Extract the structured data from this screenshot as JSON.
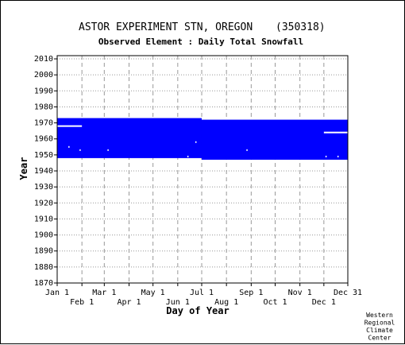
{
  "chart_data": {
    "type": "bar",
    "title": "ASTOR EXPERIMENT STN, OREGON",
    "station_id": "(350318)",
    "subtitle": "Observed Element : Daily Total Snowfall",
    "xlabel": "Day of Year",
    "ylabel": "Year",
    "ylim": [
      1870,
      2012
    ],
    "xlim": [
      1,
      365
    ],
    "grid": true,
    "bar_color": "#0000ff",
    "x_ticks_upper": [
      {
        "label": "Jan 1",
        "day": 1
      },
      {
        "label": "Mar 1",
        "day": 60
      },
      {
        "label": "May 1",
        "day": 121
      },
      {
        "label": "Jul 1",
        "day": 182
      },
      {
        "label": "Sep 1",
        "day": 244
      },
      {
        "label": "Nov 1",
        "day": 305
      },
      {
        "label": "Dec 31",
        "day": 365
      }
    ],
    "x_ticks_lower": [
      {
        "label": "Feb 1",
        "day": 32
      },
      {
        "label": "Apr 1",
        "day": 91
      },
      {
        "label": "Jun 1",
        "day": 152
      },
      {
        "label": "Aug 1",
        "day": 213
      },
      {
        "label": "Oct 1",
        "day": 274
      },
      {
        "label": "Dec 1",
        "day": 335
      }
    ],
    "y_ticks": [
      2010,
      2000,
      1990,
      1980,
      1970,
      1960,
      1950,
      1940,
      1930,
      1920,
      1910,
      1900,
      1890,
      1880,
      1870
    ],
    "coverage": [
      {
        "start_day": 1,
        "end_day": 182,
        "start_year": 1948,
        "end_year": 1973
      },
      {
        "start_day": 182,
        "end_day": 365,
        "start_year": 1947,
        "end_year": 1972
      }
    ],
    "missing": [
      {
        "start_day": 1,
        "end_day": 32,
        "year": 1968
      },
      {
        "start_day": 335,
        "end_day": 365,
        "year": 1964
      },
      {
        "start_day": 15,
        "end_day": 16,
        "year": 1955
      },
      {
        "start_day": 29,
        "end_day": 30,
        "year": 1953
      },
      {
        "start_day": 64,
        "end_day": 65,
        "year": 1953
      },
      {
        "start_day": 164,
        "end_day": 165,
        "year": 1949
      },
      {
        "start_day": 174,
        "end_day": 175,
        "year": 1958
      },
      {
        "start_day": 238,
        "end_day": 239,
        "year": 1953
      },
      {
        "start_day": 337,
        "end_day": 338,
        "year": 1949
      },
      {
        "start_day": 352,
        "end_day": 353,
        "year": 1949
      }
    ]
  },
  "credit_lines": [
    "Western",
    "Regional",
    "Climate",
    "Center"
  ]
}
